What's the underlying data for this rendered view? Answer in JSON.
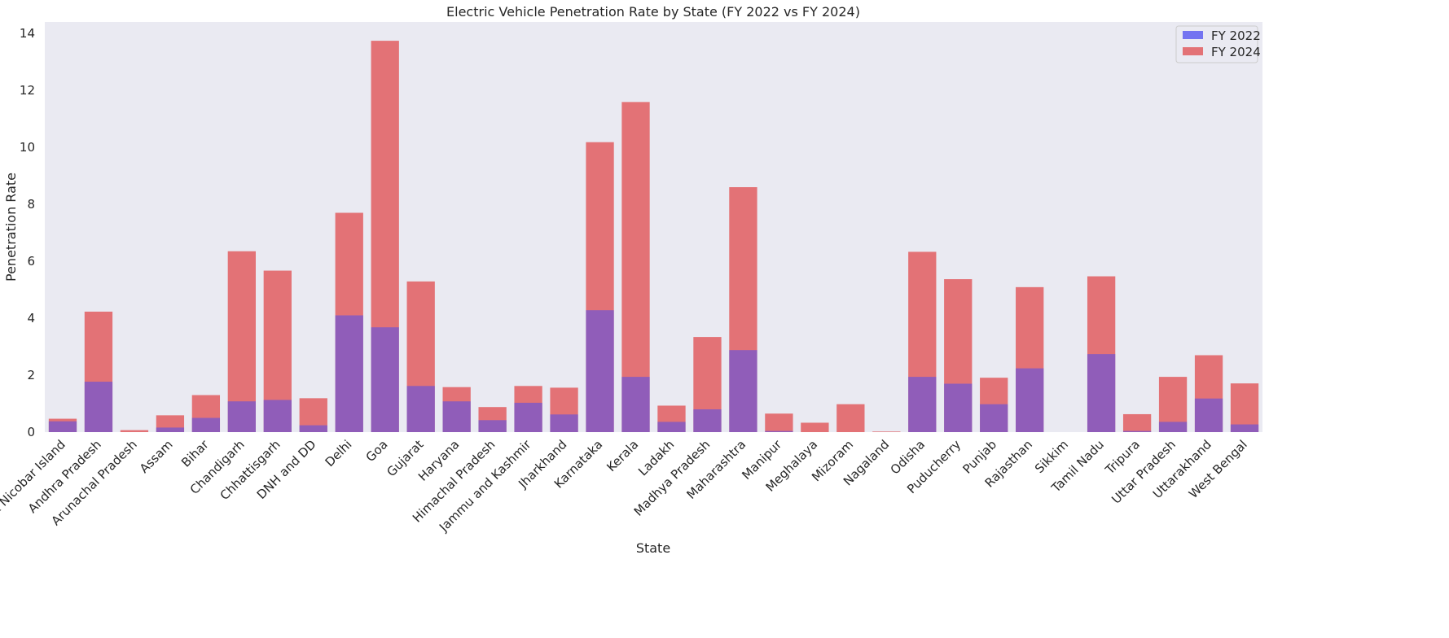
{
  "chart_data": {
    "type": "bar",
    "title": "Electric Vehicle Penetration Rate by State (FY 2022 vs FY 2024)",
    "xlabel": "State",
    "ylabel": "Penetration Rate",
    "ylim": [
      0,
      14.4
    ],
    "yticks": [
      0,
      2,
      4,
      6,
      8,
      10,
      12,
      14
    ],
    "grid": false,
    "background": "#eaeaf2",
    "legend_position": "top-right",
    "categories": [
      "Andaman & Nicobar Island",
      "Andhra Pradesh",
      "Arunachal Pradesh",
      "Assam",
      "Bihar",
      "Chandigarh",
      "Chhattisgarh",
      "DNH and DD",
      "Delhi",
      "Goa",
      "Gujarat",
      "Haryana",
      "Himachal Pradesh",
      "Jammu and Kashmir",
      "Jharkhand",
      "Karnataka",
      "Kerala",
      "Ladakh",
      "Madhya Pradesh",
      "Maharashtra",
      "Manipur",
      "Meghalaya",
      "Mizoram",
      "Nagaland",
      "Odisha",
      "Puducherry",
      "Punjab",
      "Rajasthan",
      "Sikkim",
      "Tamil Nadu",
      "Tripura",
      "Uttar Pradesh",
      "Uttarakhand",
      "West Bengal"
    ],
    "series": [
      {
        "name": "FY 2022",
        "color": "#4c4cf0",
        "values": [
          0.38,
          1.77,
          0.0,
          0.16,
          0.5,
          1.08,
          1.13,
          0.24,
          4.1,
          3.68,
          1.62,
          1.08,
          0.42,
          1.03,
          0.62,
          4.28,
          1.94,
          0.36,
          0.8,
          2.88,
          0.04,
          0.0,
          0.0,
          0.0,
          1.94,
          1.7,
          0.98,
          2.24,
          0.0,
          2.74,
          0.04,
          0.36,
          1.18,
          0.27
        ]
      },
      {
        "name": "FY 2024",
        "color": "#e36b6f",
        "values": [
          0.47,
          4.23,
          0.07,
          0.59,
          1.3,
          6.35,
          5.67,
          1.19,
          7.7,
          13.74,
          5.29,
          1.58,
          0.88,
          1.62,
          1.56,
          10.18,
          11.59,
          0.93,
          3.34,
          8.6,
          0.65,
          0.33,
          0.98,
          0.02,
          6.33,
          5.37,
          1.91,
          5.09,
          0.0,
          5.47,
          0.63,
          1.94,
          2.7,
          1.71
        ]
      }
    ]
  }
}
